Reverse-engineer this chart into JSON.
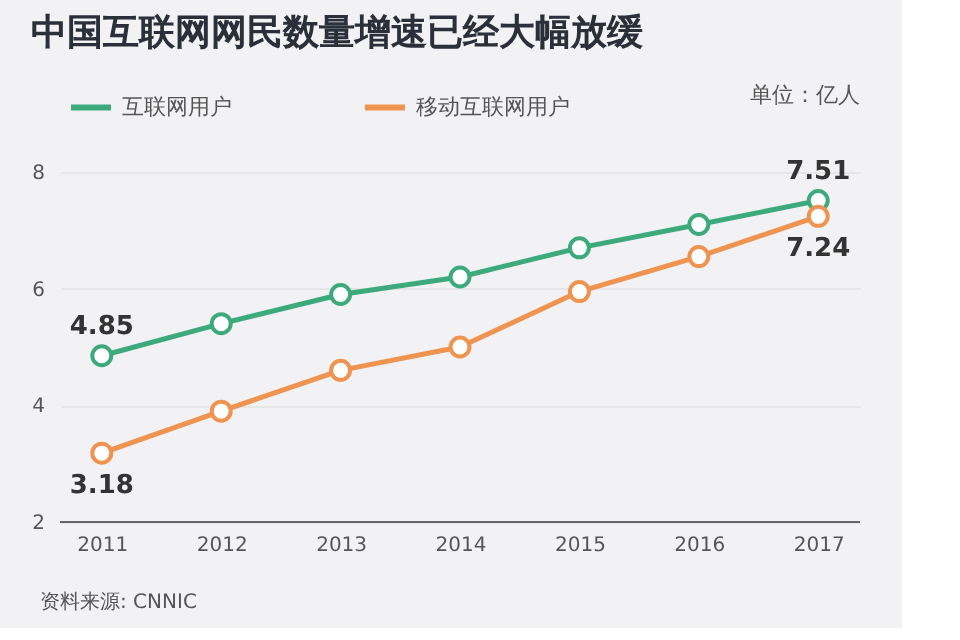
{
  "chart_data": {
    "type": "line",
    "title": "中国互联网网民数量增速已经大幅放缓",
    "categories": [
      "2011",
      "2012",
      "2013",
      "2014",
      "2015",
      "2016",
      "2017"
    ],
    "series": [
      {
        "name": "互联网用户",
        "color": "#3daa7d",
        "values": [
          4.85,
          5.4,
          5.9,
          6.2,
          6.7,
          7.1,
          7.51
        ],
        "value_labels": [
          "4.85",
          null,
          null,
          null,
          null,
          null,
          "7.51"
        ]
      },
      {
        "name": "移动互联网用户",
        "color": "#ee9350",
        "values": [
          3.18,
          3.9,
          4.6,
          5.0,
          5.95,
          6.55,
          7.24
        ],
        "value_labels": [
          "3.18",
          null,
          null,
          null,
          null,
          null,
          "7.24"
        ]
      }
    ],
    "ylim": [
      2,
      8
    ],
    "yticks": [
      2,
      4,
      6,
      8
    ],
    "grid": "y",
    "legend": "top left",
    "marker": "circle",
    "line_style": "solid",
    "annotations": [
      "单位：亿人",
      "资料来源: CNNIC"
    ]
  }
}
